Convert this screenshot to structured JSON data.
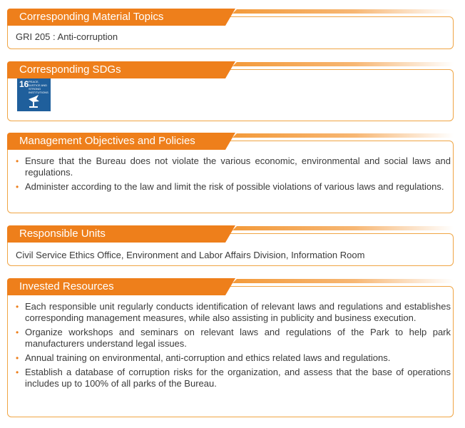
{
  "sections": {
    "material_topics": {
      "title": "Corresponding Material Topics",
      "text": "GRI 205 : Anti-corruption"
    },
    "sdgs": {
      "title": "Corresponding SDGs",
      "badge_number": "16",
      "badge_text": "PEACE, JUSTICE AND STRONG INSTITUTIONS",
      "badge_color": "#1f5f9c"
    },
    "objectives": {
      "title": "Management Objectives and Policies",
      "items": [
        "Ensure that the Bureau does not violate the various economic, environmental and social laws and regulations.",
        "Administer according to the law and limit the risk of possible violations of various laws and regulations."
      ]
    },
    "units": {
      "title": "Responsible Units",
      "text": "Civil Service Ethics Office, Environment and Labor Affairs Division, Information Room"
    },
    "resources": {
      "title": "Invested Resources",
      "items": [
        "Each responsible unit regularly conducts identification of relevant laws and regulations and establishes corresponding management measures, while also assisting in publicity and business execution.",
        "Organize workshops and seminars on relevant laws and regulations of the Park to help park manufacturers understand legal issues.",
        "Annual training on environmental, anti-corruption and ethics related laws and regulations.",
        "Establish a database of corruption risks for the organization, and assess that the base of operations includes up to 100% of all parks of the Bureau."
      ]
    }
  },
  "colors": {
    "accent": "#ee7f1b",
    "border": "#f0a544"
  }
}
